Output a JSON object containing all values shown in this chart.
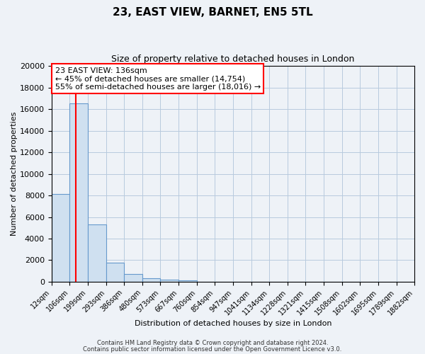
{
  "title": "23, EAST VIEW, BARNET, EN5 5TL",
  "subtitle": "Size of property relative to detached houses in London",
  "xlabel": "Distribution of detached houses by size in London",
  "ylabel": "Number of detached properties",
  "bar_color": "#cfe0f0",
  "bar_edge_color": "#6699cc",
  "red_line_x": 136,
  "ann_line1": "23 EAST VIEW: 136sqm",
  "ann_line2": "← 45% of detached houses are smaller (14,754)",
  "ann_line3": "55% of semi-detached houses are larger (18,016) →",
  "footer_line1": "Contains HM Land Registry data © Crown copyright and database right 2024.",
  "footer_line2": "Contains public sector information licensed under the Open Government Licence v3.0.",
  "bin_edges": [
    12,
    106,
    199,
    293,
    386,
    480,
    573,
    667,
    760,
    854,
    947,
    1041,
    1134,
    1228,
    1321,
    1415,
    1508,
    1602,
    1695,
    1789,
    1882
  ],
  "bin_heights": [
    8100,
    16500,
    5300,
    1800,
    700,
    300,
    200,
    150,
    0,
    0,
    0,
    0,
    0,
    0,
    0,
    0,
    0,
    0,
    0,
    0
  ],
  "ylim": [
    0,
    20000
  ],
  "yticks": [
    0,
    2000,
    4000,
    6000,
    8000,
    10000,
    12000,
    14000,
    16000,
    18000,
    20000
  ],
  "background_color": "#eef2f7",
  "plot_bg_color": "#eef2f7",
  "grid_color": "#b8cade"
}
